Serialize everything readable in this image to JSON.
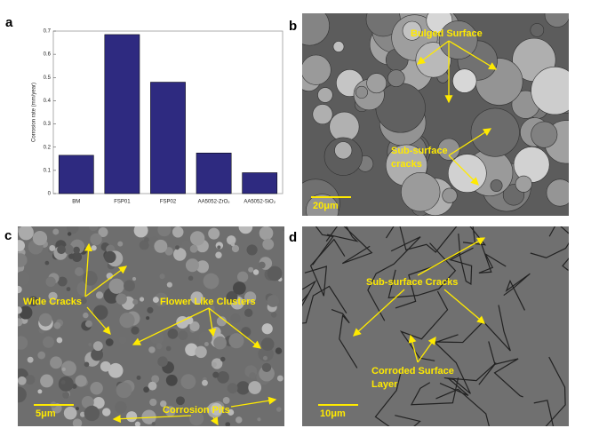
{
  "panel_labels": [
    "a",
    "b",
    "c",
    "d"
  ],
  "chart_data": {
    "type": "bar",
    "ylabel": "Corrosion rate (mm/year)",
    "categories": [
      "BM",
      "FSP01",
      "FSP02",
      "AA5052-ZrO₂",
      "AA5052-SiO₂"
    ],
    "values": [
      0.165,
      0.685,
      0.48,
      0.175,
      0.09
    ],
    "color": "#2e2a80",
    "ylim": [
      0,
      0.7
    ],
    "yticks": [
      0,
      0.1,
      0.2,
      0.3,
      0.4,
      0.5,
      0.6,
      0.7
    ]
  },
  "images": [
    {
      "annotations": [
        [
          "Bulged Surface"
        ],
        [
          "Sub-surface",
          "cracks"
        ]
      ],
      "scale": "20μm"
    },
    {
      "annotations": [
        [
          "Wide Cracks"
        ],
        [
          "Flower Like Clusters"
        ],
        [
          "Corrosion Pits"
        ]
      ],
      "scale": "5μm"
    },
    {
      "annotations": [
        [
          "Sub-surface Cracks"
        ],
        [
          "Corroded Surface",
          "Layer"
        ]
      ],
      "scale": "10μm"
    }
  ]
}
